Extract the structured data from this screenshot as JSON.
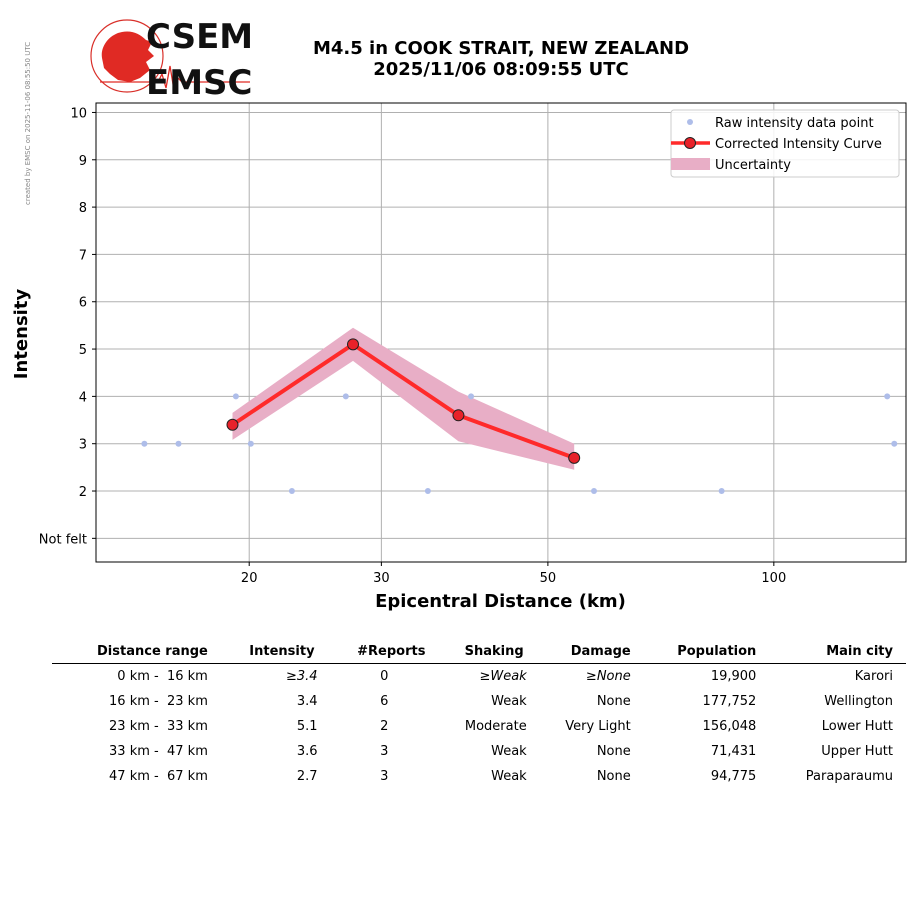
{
  "meta": {
    "side_note": "created by EMSC on 2025-11-06 08:55:50 UTC",
    "title_line1": "M4.5 in COOK STRAIT, NEW ZEALAND",
    "title_line2": "2025/11/06 08:09:55 UTC",
    "logo_text_top": "CSEM",
    "logo_text_bottom": "EMSC"
  },
  "chart_data": {
    "type": "scatter",
    "title": "M4.5 in COOK STRAIT, NEW ZEALAND 2025/11/06 08:09:55 UTC",
    "xlabel": "Epicentral Distance (km)",
    "ylabel": "Intensity",
    "x_scale": "log",
    "xlim": [
      12.5,
      150
    ],
    "ylim": [
      0.5,
      10.2
    ],
    "x_ticks": [
      20,
      30,
      50,
      100
    ],
    "y_ticks": [
      {
        "value": 1,
        "label": "Not felt"
      },
      {
        "value": 2,
        "label": "2"
      },
      {
        "value": 3,
        "label": "3"
      },
      {
        "value": 4,
        "label": "4"
      },
      {
        "value": 5,
        "label": "5"
      },
      {
        "value": 6,
        "label": "6"
      },
      {
        "value": 7,
        "label": "7"
      },
      {
        "value": 8,
        "label": "8"
      },
      {
        "value": 9,
        "label": "9"
      },
      {
        "value": 10,
        "label": "10"
      }
    ],
    "grid": true,
    "legend_position": "top-right",
    "series": [
      {
        "name": "Raw intensity data point",
        "kind": "points",
        "color": "#aebde9",
        "points": [
          [
            14.5,
            3
          ],
          [
            16.1,
            3
          ],
          [
            19.2,
            4
          ],
          [
            20.1,
            3
          ],
          [
            22.8,
            2
          ],
          [
            26.9,
            4
          ],
          [
            34.6,
            2
          ],
          [
            39.5,
            4
          ],
          [
            57.6,
            2
          ],
          [
            85.2,
            2
          ],
          [
            141.6,
            4
          ],
          [
            144.7,
            3
          ]
        ]
      },
      {
        "name": "Corrected Intensity Curve",
        "kind": "line",
        "color": "#ff2a2a",
        "marker_face": "#e8222a",
        "points": [
          [
            19.0,
            3.4
          ],
          [
            27.5,
            5.1
          ],
          [
            38.0,
            3.6
          ],
          [
            54.2,
            2.7
          ]
        ]
      },
      {
        "name": "Uncertainty",
        "kind": "band",
        "color": "#e8aec6",
        "upper": [
          [
            19.0,
            3.65
          ],
          [
            27.5,
            5.45
          ],
          [
            38.0,
            4.1
          ],
          [
            54.2,
            3.0
          ]
        ],
        "lower": [
          [
            19.0,
            3.08
          ],
          [
            27.5,
            4.75
          ],
          [
            38.0,
            3.05
          ],
          [
            54.2,
            2.45
          ]
        ]
      }
    ]
  },
  "table": {
    "headers": [
      "Distance range",
      "Intensity",
      "#Reports",
      "Shaking",
      "Damage",
      "Population",
      "Main city"
    ],
    "rows": [
      {
        "from": "0 km -",
        "to": "16 km",
        "intensity": "≥3.4",
        "reports": "0",
        "shaking": "≥Weak",
        "damage": "≥None",
        "population": "19,900",
        "city": "Karori",
        "italic": true
      },
      {
        "from": "16 km -",
        "to": "23 km",
        "intensity": "3.4",
        "reports": "6",
        "shaking": "Weak",
        "damage": "None",
        "population": "177,752",
        "city": "Wellington",
        "italic": false
      },
      {
        "from": "23 km -",
        "to": "33 km",
        "intensity": "5.1",
        "reports": "2",
        "shaking": "Moderate",
        "damage": "Very Light",
        "population": "156,048",
        "city": "Lower Hutt",
        "italic": false
      },
      {
        "from": "33 km -",
        "to": "47 km",
        "intensity": "3.6",
        "reports": "3",
        "shaking": "Weak",
        "damage": "None",
        "population": "71,431",
        "city": "Upper Hutt",
        "italic": false
      },
      {
        "from": "47 km -",
        "to": "67 km",
        "intensity": "2.7",
        "reports": "3",
        "shaking": "Weak",
        "damage": "None",
        "population": "94,775",
        "city": "Paraparaumu",
        "italic": false
      }
    ]
  }
}
